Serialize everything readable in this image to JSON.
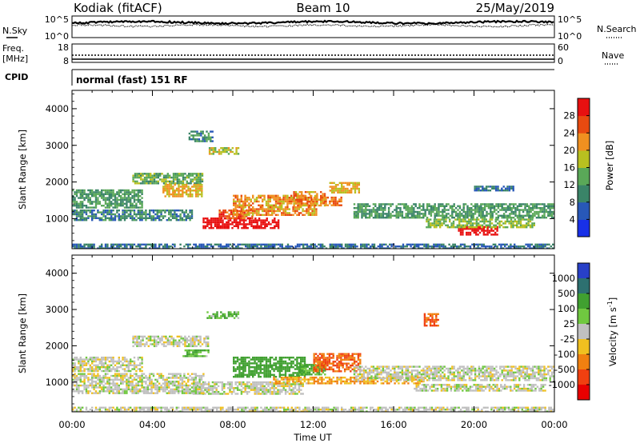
{
  "header": {
    "station": "Kodiak (fitACF)",
    "beam": "Beam 10",
    "date": "25/May/2019"
  },
  "strip_labels": {
    "nsky": "N.Sky",
    "nsky_ticks": [
      "10^5",
      "10^0"
    ],
    "nsearch": "N.Search",
    "nsearch_ticks": [
      "10^5",
      "10^0"
    ],
    "freq_line1": "Freq.",
    "freq_line2": "[MHz]",
    "freq_ticks": [
      "18",
      "8"
    ],
    "nave": "Nave",
    "nave_ticks": [
      "60",
      "0"
    ],
    "cpid": "CPID",
    "mode": "normal (fast) 151 RF"
  },
  "chart_data": [
    {
      "type": "heatmap",
      "panel": "power",
      "title": "",
      "xlabel": "",
      "ylabel": "Slant Range [km]",
      "yticks": [
        "1000",
        "2000",
        "3000",
        "4000"
      ],
      "ylim": [
        180,
        4500
      ],
      "xlim_hours": [
        0,
        24
      ],
      "colorbar": {
        "label": "Power [dB]",
        "tick_labels": [
          "4",
          "8",
          "12",
          "16",
          "20",
          "24",
          "28"
        ],
        "colors": [
          "#1830e8",
          "#2858b8",
          "#3a8468",
          "#5aa858",
          "#b8c020",
          "#f09020",
          "#e84a10",
          "#e81010"
        ]
      },
      "echo_regions": [
        {
          "t": [
            6.5,
            10.3
          ],
          "r": [
            730,
            1030
          ],
          "db": 30
        },
        {
          "t": [
            7.3,
            9.0
          ],
          "r": [
            1030,
            1250
          ],
          "db": 24
        },
        {
          "t": [
            8.0,
            12.2
          ],
          "r": [
            1120,
            1650
          ],
          "db": 20
        },
        {
          "t": [
            11.0,
            12.6
          ],
          "r": [
            1380,
            1750
          ],
          "db": 20
        },
        {
          "t": [
            12.4,
            13.4
          ],
          "r": [
            1350,
            1600
          ],
          "db": 22
        },
        {
          "t": [
            12.8,
            14.3
          ],
          "r": [
            1700,
            2000
          ],
          "db": 18
        },
        {
          "t": [
            0.0,
            3.5
          ],
          "r": [
            1300,
            1800
          ],
          "db": 10
        },
        {
          "t": [
            3.0,
            6.5
          ],
          "r": [
            1950,
            2250
          ],
          "db": 12
        },
        {
          "t": [
            0.0,
            6.0
          ],
          "r": [
            980,
            1250
          ],
          "db": 8
        },
        {
          "t": [
            14.0,
            24.0
          ],
          "r": [
            1050,
            1420
          ],
          "db": 10
        },
        {
          "t": [
            19.2,
            21.2
          ],
          "r": [
            550,
            800
          ],
          "db": 30
        },
        {
          "t": [
            17.6,
            23.0
          ],
          "r": [
            780,
            1000
          ],
          "db": 14
        },
        {
          "t": [
            0.0,
            24.0
          ],
          "r": [
            200,
            320
          ],
          "db": 6
        },
        {
          "t": [
            5.8,
            7.0
          ],
          "r": [
            3100,
            3400
          ],
          "db": 8
        },
        {
          "t": [
            6.8,
            8.3
          ],
          "r": [
            2750,
            2950
          ],
          "db": 16
        },
        {
          "t": [
            20.0,
            22.0
          ],
          "r": [
            1750,
            1900
          ],
          "db": 6
        },
        {
          "t": [
            4.5,
            6.5
          ],
          "r": [
            1600,
            1950
          ],
          "db": 18
        }
      ]
    },
    {
      "type": "heatmap",
      "panel": "velocity",
      "title": "",
      "xlabel": "Time UT",
      "ylabel": "Slant Range [km]",
      "yticks": [
        "1000",
        "2000",
        "3000",
        "4000"
      ],
      "ylim": [
        180,
        4500
      ],
      "xticks": [
        "00:00",
        "04:00",
        "08:00",
        "12:00",
        "16:00",
        "20:00",
        "00:00"
      ],
      "xlim_hours": [
        0,
        24
      ],
      "colorbar": {
        "label": "Velocity [m s",
        "label_superscript": "-1",
        "label_close": "]",
        "tick_labels": [
          "1000",
          "500",
          "100",
          "25",
          "-25",
          "-100",
          "-500",
          "-1000"
        ],
        "colors": [
          "#2840c8",
          "#2d7070",
          "#40a030",
          "#70c840",
          "#c0c0c0",
          "#f0c020",
          "#f08010",
          "#f04010",
          "#e80000"
        ]
      },
      "echo_regions": [
        {
          "t": [
            6.0,
            11.5
          ],
          "r": [
            700,
            1020
          ],
          "v": 0
        },
        {
          "t": [
            0.0,
            6.5
          ],
          "r": [
            700,
            1250
          ],
          "v": 0
        },
        {
          "t": [
            8.0,
            11.6
          ],
          "r": [
            1120,
            1700
          ],
          "v": 150
        },
        {
          "t": [
            11.3,
            12.6
          ],
          "r": [
            1200,
            1500
          ],
          "v": 80
        },
        {
          "t": [
            12.0,
            14.3
          ],
          "r": [
            1280,
            1800
          ],
          "v": -300
        },
        {
          "t": [
            10.0,
            17.5
          ],
          "r": [
            950,
            1150
          ],
          "v": -60
        },
        {
          "t": [
            14.0,
            24.0
          ],
          "r": [
            1050,
            1450
          ],
          "v": 0
        },
        {
          "t": [
            3.0,
            6.8
          ],
          "r": [
            1980,
            2280
          ],
          "v": 0
        },
        {
          "t": [
            0.0,
            3.5
          ],
          "r": [
            1300,
            1700
          ],
          "v": 0
        },
        {
          "t": [
            17.0,
            23.5
          ],
          "r": [
            750,
            950
          ],
          "v": 0
        },
        {
          "t": [
            0.0,
            24.0
          ],
          "r": [
            200,
            320
          ],
          "v": 0
        },
        {
          "t": [
            5.5,
            6.8
          ],
          "r": [
            1700,
            1900
          ],
          "v": 60
        },
        {
          "t": [
            6.7,
            8.3
          ],
          "r": [
            2780,
            2950
          ],
          "v": 60
        },
        {
          "t": [
            17.5,
            18.2
          ],
          "r": [
            2550,
            2900
          ],
          "v": -300
        }
      ]
    }
  ]
}
